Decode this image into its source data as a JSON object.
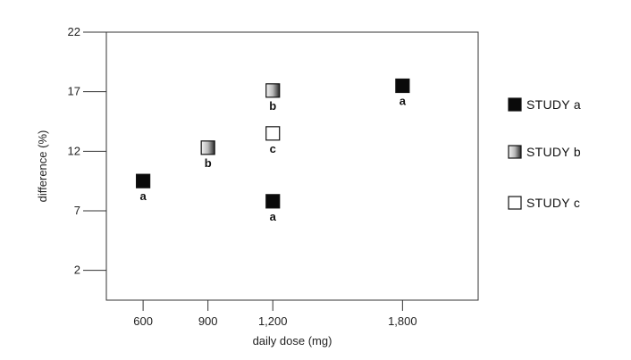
{
  "chart_data": {
    "type": "scatter",
    "xlabel": "daily dose (mg)",
    "ylabel": "difference (%)",
    "xlim": [
      430,
      2150
    ],
    "ylim": [
      -0.5,
      22
    ],
    "x_ticks": [
      600,
      900,
      1200,
      1800
    ],
    "x_tick_labels": [
      "600",
      "900",
      "1,200",
      "1,800"
    ],
    "y_ticks": [
      2,
      7,
      12,
      17,
      22
    ],
    "y_tick_labels": [
      "2",
      "7",
      "12",
      "17",
      "22"
    ],
    "grid": false,
    "legend_position": "right",
    "series": [
      {
        "name": "STUDY a",
        "label": "a",
        "fill": "solid-black",
        "points": [
          {
            "x": 600,
            "y": 9.5
          },
          {
            "x": 1200,
            "y": 7.8
          },
          {
            "x": 1800,
            "y": 17.5
          }
        ]
      },
      {
        "name": "STUDY b",
        "label": "b",
        "fill": "gradient-gray",
        "points": [
          {
            "x": 900,
            "y": 12.3
          },
          {
            "x": 1200,
            "y": 17.1
          }
        ]
      },
      {
        "name": "STUDY c",
        "label": "c",
        "fill": "white",
        "points": [
          {
            "x": 1200,
            "y": 13.5
          }
        ]
      }
    ]
  }
}
